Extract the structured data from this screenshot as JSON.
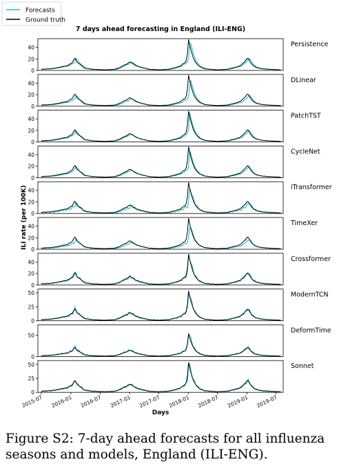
{
  "figure": {
    "title": "7 days ahead forecasting in England (ILI-ENG)",
    "xlabel": "Days",
    "ylabel": "ILI rate (per 100K)",
    "caption": "Figure S2: 7-day ahead forecasts for all influenza seasons and models, England (ILI-ENG)."
  },
  "legend": {
    "placement": "top-left",
    "entries": [
      {
        "label": "Forecasts",
        "color": "#17becf"
      },
      {
        "label": "Ground truth",
        "color": "#000000"
      }
    ]
  },
  "colors": {
    "forecast": "#17becf",
    "truth": "#000000"
  },
  "chart_data": {
    "type": "line",
    "title": "7 days ahead forecasting in England (ILI-ENG)",
    "xlabel": "Days",
    "ylabel": "ILI rate (per 100K)",
    "xlim": [
      "2015-06-10",
      "2019-08-15"
    ],
    "x_ticks": [
      "2015-07",
      "2016-01",
      "2016-07",
      "2017-01",
      "2017-07",
      "2018-01",
      "2018-07",
      "2019-01",
      "2019-07"
    ],
    "truth": {
      "name": "Ground truth",
      "dates": [
        "2015-07-01",
        "2015-09-01",
        "2015-10-15",
        "2015-11-15",
        "2015-12-10",
        "2015-12-25",
        "2016-01-10",
        "2016-01-25",
        "2016-02-10",
        "2016-03-01",
        "2016-03-25",
        "2016-05-15",
        "2016-08-01",
        "2016-10-01",
        "2016-11-01",
        "2016-11-25",
        "2016-12-15",
        "2017-01-01",
        "2017-01-20",
        "2017-02-10",
        "2017-03-15",
        "2017-05-01",
        "2017-07-01",
        "2017-09-01",
        "2017-10-15",
        "2017-11-15",
        "2017-12-01",
        "2017-12-15",
        "2017-12-25",
        "2018-01-02",
        "2018-01-10",
        "2018-01-20",
        "2018-02-01",
        "2018-02-15",
        "2018-03-10",
        "2018-04-10",
        "2018-05-15",
        "2018-07-01",
        "2018-09-01",
        "2018-10-15",
        "2018-11-20",
        "2018-12-10",
        "2018-12-25",
        "2019-01-05",
        "2019-01-15",
        "2019-01-28",
        "2019-02-10",
        "2019-03-01",
        "2019-04-01",
        "2019-05-15",
        "2019-08-01"
      ],
      "values": [
        2,
        3,
        5,
        7,
        8,
        11,
        13,
        22,
        14,
        10,
        4,
        2,
        1,
        2,
        5,
        9,
        11,
        15,
        12,
        8,
        5,
        2,
        1,
        2,
        5,
        8,
        12,
        14,
        22,
        55,
        44,
        33,
        22,
        14,
        7,
        3,
        2,
        1,
        2,
        5,
        8,
        13,
        17,
        22,
        18,
        12,
        8,
        5,
        3,
        2,
        1
      ]
    },
    "panels": [
      {
        "model": "Persistence",
        "ylim": [
          0,
          55
        ],
        "yticks": [
          0,
          20,
          40
        ],
        "shift_days": 10,
        "scale": 0.97,
        "wiggle": 0
      },
      {
        "model": "DLinear",
        "ylim": [
          0,
          55
        ],
        "yticks": [
          0,
          20,
          40
        ],
        "shift_days": 12,
        "scale": 0.88,
        "wiggle": 0
      },
      {
        "model": "PatchTST",
        "ylim": [
          0,
          55
        ],
        "yticks": [
          0,
          20,
          40
        ],
        "shift_days": 8,
        "scale": 0.92,
        "wiggle": 0.5
      },
      {
        "model": "CycleNet",
        "ylim": [
          0,
          55
        ],
        "yticks": [
          0,
          20,
          40
        ],
        "shift_days": 9,
        "scale": 0.9,
        "wiggle": 0.5
      },
      {
        "model": "iTransformer",
        "ylim": [
          0,
          55
        ],
        "yticks": [
          0,
          20,
          40
        ],
        "shift_days": 10,
        "scale": 0.85,
        "wiggle": 2
      },
      {
        "model": "TimeXer",
        "ylim": [
          0,
          55
        ],
        "yticks": [
          0,
          20,
          40
        ],
        "shift_days": 10,
        "scale": 0.8,
        "wiggle": 1
      },
      {
        "model": "Crossformer",
        "ylim": [
          0,
          55
        ],
        "yticks": [
          0,
          20,
          40
        ],
        "shift_days": 3,
        "scale": 1.0,
        "wiggle": 2
      },
      {
        "model": "ModernTCN",
        "ylim": [
          0,
          57
        ],
        "yticks": [
          0,
          25,
          50
        ],
        "shift_days": 2,
        "scale": 1.0,
        "wiggle": 2
      },
      {
        "model": "DeformTime",
        "ylim": [
          0,
          75
        ],
        "yticks": [
          0,
          50
        ],
        "shift_days": 1,
        "scale": 1.1,
        "wiggle": 2
      },
      {
        "model": "Sonnet",
        "ylim": [
          0,
          57
        ],
        "yticks": [
          0,
          25,
          50
        ],
        "shift_days": 2,
        "scale": 1.0,
        "wiggle": 2
      }
    ]
  }
}
